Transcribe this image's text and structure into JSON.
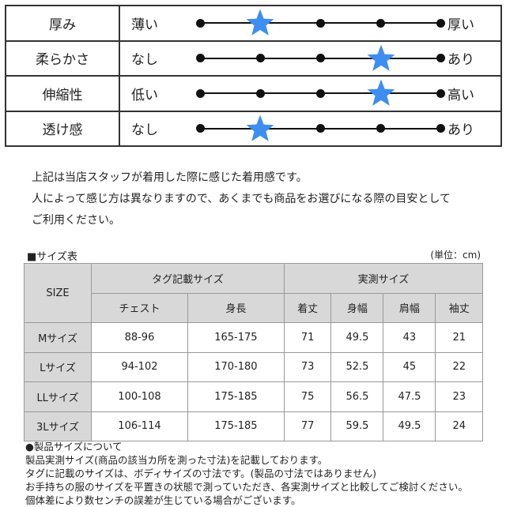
{
  "feel": [
    {
      "label": "厚み",
      "left": "薄い",
      "right": "厚い",
      "level": 2,
      "steps": 5
    },
    {
      "label": "柔らかさ",
      "left": "なし",
      "right": "あり",
      "level": 4,
      "steps": 5
    },
    {
      "label": "伸縮性",
      "left": "低い",
      "right": "高い",
      "level": 4,
      "steps": 5
    },
    {
      "label": "透け感",
      "left": "なし",
      "right": "あり",
      "level": 2,
      "steps": 5
    }
  ],
  "star_color": "#3d8ef0",
  "notes": [
    "上記は当店スタッフが着用した際に感じた着用感です。",
    "人によって感じ方は異なりますので、あくまでも商品をお選びになる際の目安として",
    "ご利用ください。"
  ],
  "size_table": {
    "title": "■サイズ表",
    "unit": "(単位：cm)",
    "size_header": "SIZE",
    "tag_header": "タグ記載サイズ",
    "measured_header": "実測サイズ",
    "columns": [
      "チェスト",
      "身長",
      "着丈",
      "身幅",
      "肩幅",
      "袖丈"
    ],
    "rows": [
      [
        "Mサイズ",
        "88-96",
        "165-175",
        "71",
        "49.5",
        "43",
        "21"
      ],
      [
        "Lサイズ",
        "94-102",
        "170-180",
        "73",
        "52.5",
        "45",
        "22"
      ],
      [
        "LLサイズ",
        "100-108",
        "175-185",
        "75",
        "56.5",
        "47.5",
        "23"
      ],
      [
        "3Lサイズ",
        "106-114",
        "175-185",
        "77",
        "59.5",
        "49.5",
        "24"
      ]
    ]
  },
  "footnotes": [
    "●製品サイズについて",
    "製品実測サイズ(商品の該当カ所を測った寸法)を記載しております。",
    "タグに記載のサイズは、ボディサイズの寸法です。(製品の寸法ではありません)",
    "お手持ちの服のサイズを平置きの状態で測っていただき、各実測サイズと比較してご検討ください。",
    "個体差により数センチの誤差が生じている場合がございます。"
  ]
}
